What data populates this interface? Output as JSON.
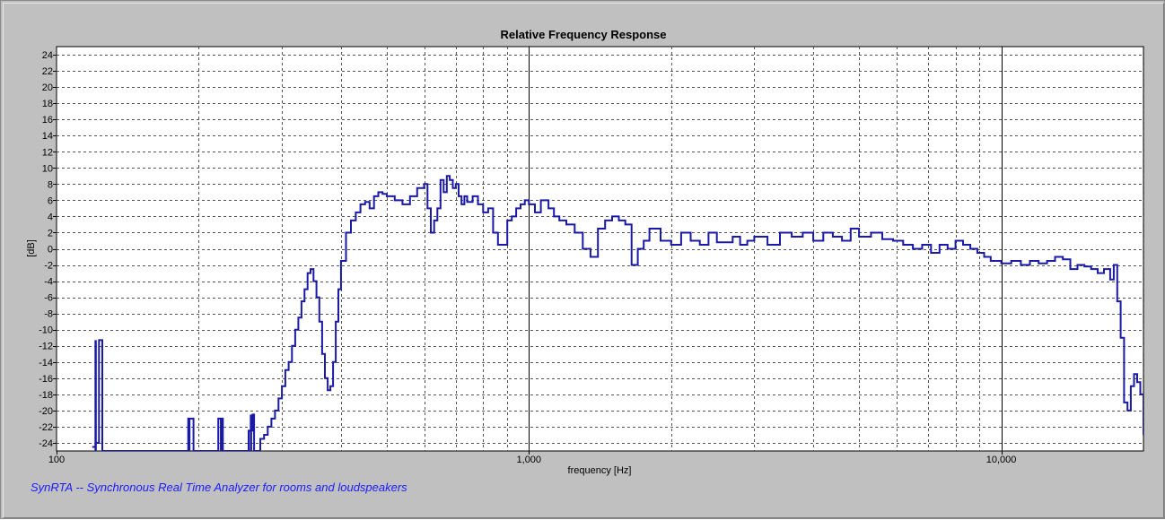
{
  "footer_text": "SynRTA -- Synchronous Real Time Analyzer for rooms and loudspeakers",
  "colors": {
    "background": "#c0c0c0",
    "plot_background": "#ffffff",
    "curve": "#1a1aa6",
    "footer": "#1a1aff"
  },
  "chart_data": {
    "type": "line",
    "title": "Relative Frequency Response",
    "xlabel": "frequency [Hz]",
    "ylabel": "[dB]",
    "xscale": "log",
    "xlim": [
      100,
      20000
    ],
    "ylim": [
      -25,
      25
    ],
    "grid": true,
    "xticks": [
      {
        "value": 100,
        "label": "100"
      },
      {
        "value": 1000,
        "label": "1,000"
      },
      {
        "value": 10000,
        "label": "10,000"
      }
    ],
    "yticks": [
      24,
      22,
      20,
      18,
      16,
      14,
      12,
      10,
      8,
      6,
      4,
      2,
      0,
      -2,
      -4,
      -6,
      -8,
      -10,
      -12,
      -14,
      -16,
      -18,
      -20,
      -22,
      -24
    ],
    "series": [
      {
        "color": "#1a1aa6",
        "x": [
          119,
          121,
          123,
          125,
          127,
          190,
          192,
          195,
          220,
          222,
          225,
          240,
          255,
          260,
          262,
          265,
          270,
          275,
          280,
          285,
          290,
          295,
          300,
          305,
          310,
          315,
          320,
          325,
          330,
          335,
          340,
          345,
          350,
          355,
          360,
          365,
          370,
          375,
          380,
          385,
          390,
          395,
          400,
          410,
          420,
          430,
          440,
          450,
          460,
          470,
          480,
          490,
          500,
          520,
          540,
          560,
          580,
          600,
          610,
          620,
          630,
          640,
          650,
          660,
          670,
          680,
          690,
          700,
          710,
          720,
          730,
          740,
          760,
          780,
          800,
          820,
          840,
          860,
          880,
          900,
          920,
          940,
          960,
          980,
          1000,
          1030,
          1060,
          1100,
          1130,
          1160,
          1200,
          1250,
          1300,
          1350,
          1400,
          1450,
          1500,
          1550,
          1600,
          1650,
          1700,
          1750,
          1800,
          1900,
          2000,
          2100,
          2200,
          2300,
          2400,
          2500,
          2600,
          2700,
          2800,
          2900,
          3000,
          3200,
          3400,
          3600,
          3800,
          4000,
          4200,
          4400,
          4600,
          4800,
          5000,
          5300,
          5600,
          5900,
          6200,
          6500,
          6800,
          7100,
          7400,
          7700,
          8000,
          8300,
          8600,
          8900,
          9200,
          9500,
          9800,
          10000,
          10500,
          11000,
          11500,
          12000,
          12500,
          13000,
          13500,
          14000,
          14500,
          15000,
          15500,
          16000,
          16500,
          17000,
          17300,
          17600,
          17900,
          18200,
          18500,
          18800,
          19100,
          19400,
          19700,
          20000
        ],
        "y": [
          -24.5,
          -24,
          -11.3,
          -25,
          -25,
          -21,
          -21,
          -25,
          -21,
          -21,
          -25,
          -25,
          -22.5,
          -20.5,
          -25,
          -25,
          -23.5,
          -23,
          -22,
          -21,
          -20,
          -18.5,
          -17,
          -15,
          -14,
          -12,
          -10,
          -8.5,
          -6.5,
          -5,
          -3,
          -2.5,
          -4,
          -6,
          -9,
          -13,
          -16,
          -17.5,
          -17,
          -14,
          -9,
          -5,
          -1.5,
          2,
          3.5,
          4.5,
          5.5,
          5.8,
          5,
          6.5,
          7,
          6.8,
          6.5,
          6,
          5.5,
          6.5,
          7.5,
          8,
          5,
          2,
          3.5,
          5,
          8.5,
          7,
          9,
          8.5,
          7.5,
          8,
          6.5,
          5.5,
          6.5,
          5.8,
          6.5,
          5.5,
          4.5,
          5,
          2,
          0.5,
          0.5,
          3.5,
          4,
          5,
          5.5,
          6,
          5.5,
          4.5,
          6,
          5,
          4,
          3.5,
          3,
          2,
          0,
          -1,
          2.5,
          3.5,
          4,
          3.5,
          3,
          -2,
          0,
          1,
          2.5,
          1,
          0.5,
          2,
          1,
          0.5,
          2,
          0.8,
          0.8,
          1.5,
          0.5,
          1,
          1.5,
          0.5,
          2,
          1.5,
          2,
          1,
          2,
          1.5,
          1,
          2.5,
          1.5,
          2,
          1.2,
          1,
          0.5,
          0,
          0.5,
          -0.5,
          0.5,
          0,
          1,
          0.5,
          0,
          -0.5,
          -1,
          -1.5,
          -1.5,
          -1.8,
          -1.5,
          -2,
          -1.5,
          -1.8,
          -1.5,
          -1,
          -1.3,
          -2.5,
          -2,
          -2.2,
          -2.5,
          -3,
          -2.5,
          -3.8,
          -2,
          -6.5,
          -11,
          -19,
          -20,
          -17,
          -15.5,
          -16.5,
          -18,
          -23
        ],
        "spikes": [
          {
            "x": 121,
            "y": -11.3
          },
          {
            "x": 191,
            "y": -21
          },
          {
            "x": 223,
            "y": -21
          },
          {
            "x": 258,
            "y": -20.5
          }
        ]
      }
    ]
  }
}
